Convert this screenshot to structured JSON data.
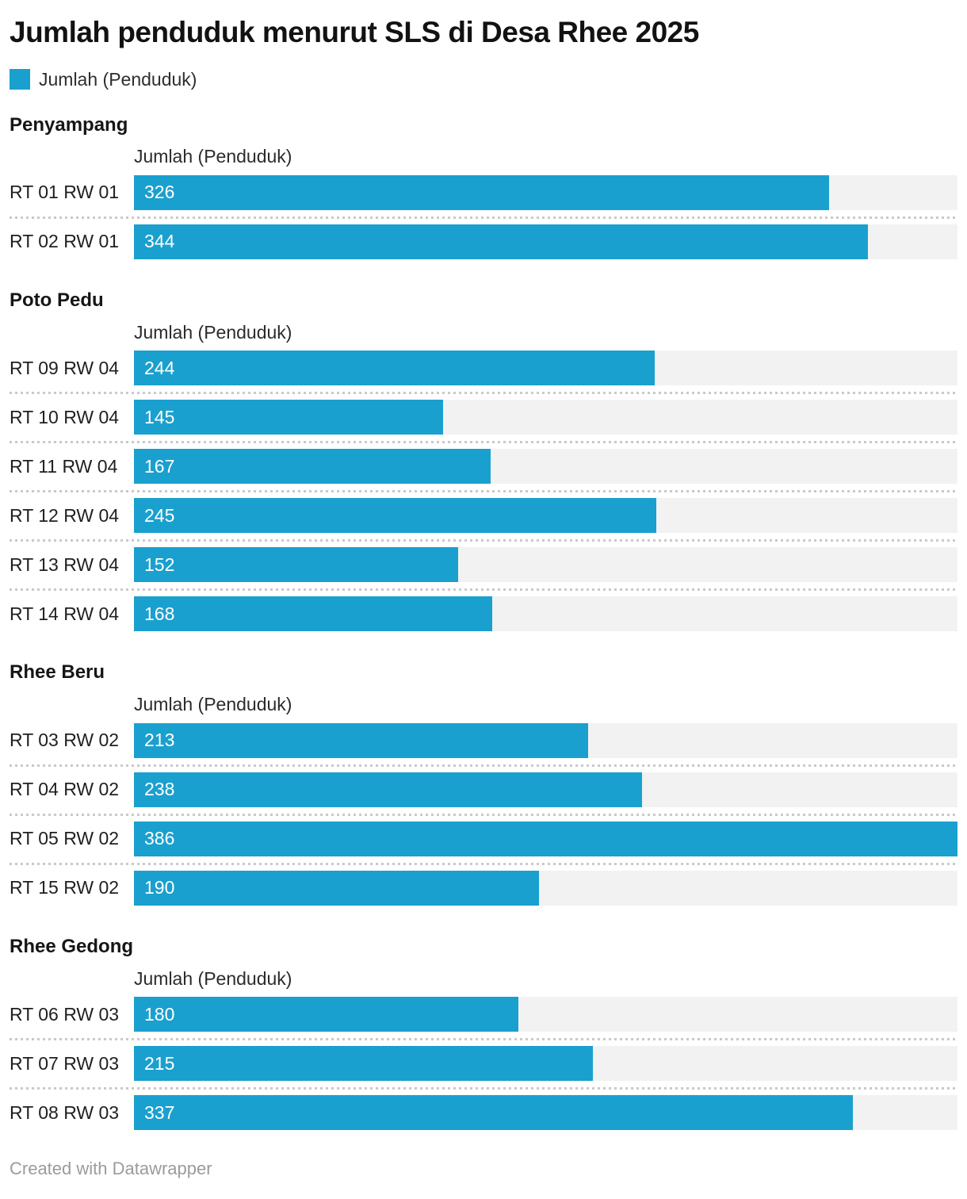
{
  "header": {
    "title": "Jumlah penduduk menurut SLS di Desa Rhee 2025"
  },
  "legend": {
    "label": "Jumlah (Penduduk)"
  },
  "footer": {
    "text": "Created with Datawrapper"
  },
  "colors": {
    "bar": "#1aa0ce",
    "track": "#f2f2f2",
    "value_text": "#ffffff"
  },
  "chart_data": {
    "type": "bar",
    "orientation": "horizontal",
    "title": "Jumlah penduduk menurut SLS di Desa Rhee 2025",
    "series_label": "Jumlah (Penduduk)",
    "xlim": [
      0,
      386
    ],
    "max_value": 386,
    "grid": false,
    "groups": [
      {
        "name": "Penyampang",
        "column_header": "Jumlah (Penduduk)",
        "categories": [
          "RT 01 RW 01",
          "RT 02 RW 01"
        ],
        "values": [
          326,
          344
        ]
      },
      {
        "name": "Poto Pedu",
        "column_header": "Jumlah (Penduduk)",
        "categories": [
          "RT 09 RW 04",
          "RT 10 RW 04",
          "RT 11 RW 04",
          "RT 12 RW 04",
          "RT 13 RW 04",
          "RT 14 RW 04"
        ],
        "values": [
          244,
          145,
          167,
          245,
          152,
          168
        ]
      },
      {
        "name": "Rhee Beru",
        "column_header": "Jumlah (Penduduk)",
        "categories": [
          "RT 03 RW 02",
          "RT 04 RW 02",
          "RT 05 RW 02",
          "RT 15 RW 02"
        ],
        "values": [
          213,
          238,
          386,
          190
        ]
      },
      {
        "name": "Rhee Gedong",
        "column_header": "Jumlah (Penduduk)",
        "categories": [
          "RT 06 RW 03",
          "RT 07 RW 03",
          "RT 08 RW 03"
        ],
        "values": [
          180,
          215,
          337
        ]
      }
    ]
  }
}
